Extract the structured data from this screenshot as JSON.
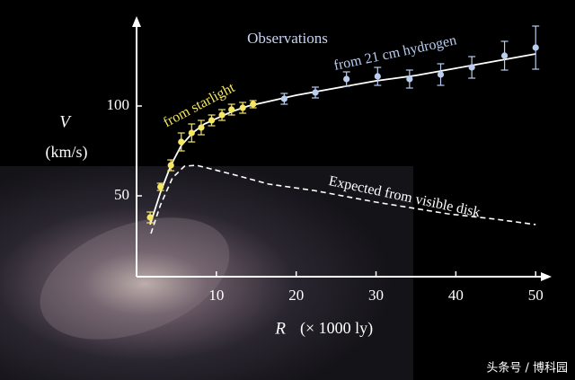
{
  "chart_data": {
    "type": "line",
    "title": "Observations",
    "y_label": "V",
    "y_unit": "(km/s)",
    "x_label": "R",
    "x_unit": "(× 1000 ly)",
    "xlim": [
      0,
      52
    ],
    "ylim": [
      5,
      150
    ],
    "xticks": [
      10,
      20,
      30,
      40,
      50
    ],
    "yticks": [
      50,
      100
    ],
    "series": [
      {
        "kind": "points",
        "color": "#f5e663",
        "x": [
          1.7,
          3.0,
          4.3,
          5.6,
          6.9,
          8.1,
          9.4,
          10.7,
          11.9,
          13.3,
          14.6
        ],
        "values": [
          38,
          55,
          67,
          80,
          85,
          88,
          92,
          95,
          98,
          99,
          101
        ],
        "errors": [
          3,
          2,
          3,
          5,
          5,
          4,
          3,
          3,
          3,
          3,
          2
        ]
      },
      {
        "kind": "points",
        "color": "#b9cdef",
        "x": [
          18.5,
          22.4,
          26.3,
          30.2,
          34.2,
          38.1,
          42.0,
          46.1,
          50.0
        ],
        "values": [
          104,
          107.5,
          115,
          116.5,
          115,
          117.5,
          121.5,
          128,
          132.5
        ],
        "errors": [
          3,
          3,
          4,
          5,
          5,
          6,
          6,
          8,
          12
        ]
      },
      {
        "kind": "line",
        "color": "#ffffff",
        "x": [
          1.7,
          3,
          4.3,
          5.6,
          7,
          8.5,
          10,
          12,
          14,
          16,
          20,
          25,
          30,
          35,
          40,
          45,
          50
        ],
        "values": [
          34,
          52,
          67,
          78,
          85,
          90,
          93,
          97,
          100,
          102,
          106,
          110,
          114,
          117,
          121,
          125,
          129
        ]
      },
      {
        "kind": "dashed",
        "color": "#ffffff",
        "x": [
          1.8,
          3,
          4.5,
          6,
          7.5,
          9.3,
          12,
          16.6,
          22.2,
          30,
          39,
          45,
          50
        ],
        "values": [
          29,
          45,
          60,
          66.5,
          67,
          65,
          62,
          56.5,
          53,
          46.5,
          40,
          37,
          34
        ]
      }
    ],
    "annotations": [
      {
        "text": "from  starlight",
        "color": "#f5e663"
      },
      {
        "text": "from 21 cm hydrogen",
        "color": "#b9cdef"
      },
      {
        "text": "Expected from visible disk",
        "color": "#ffffff"
      }
    ],
    "watermark": "头条号 / 博科园"
  }
}
